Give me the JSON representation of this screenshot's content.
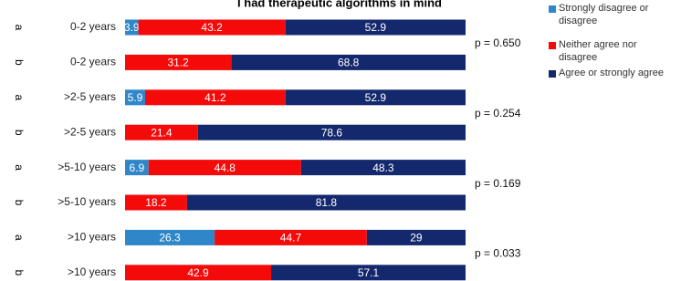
{
  "chart_data": {
    "type": "stacked-bar-horizontal",
    "title": "I had therapeutic algorithms in mind",
    "groups": [
      "a",
      "b",
      "a",
      "b",
      "a",
      "b",
      "a",
      "b"
    ],
    "categories": [
      "0-2 years",
      "0-2 years",
      ">2-5 years",
      ">2-5 years",
      ">5-10 years",
      ">5-10 years",
      ">10 years",
      ">10 years"
    ],
    "series": [
      {
        "name": "Strongly disagree or disagree",
        "color": "#2f86c9",
        "values": [
          3.9,
          0,
          5.9,
          null,
          6.9,
          null,
          26.3,
          null
        ]
      },
      {
        "name": "Neither agree nor disagree",
        "color": "#f50a0a",
        "values": [
          43.2,
          31.2,
          41.2,
          21.4,
          44.8,
          18.2,
          44.7,
          42.9
        ]
      },
      {
        "name": "Agree or strongly agree",
        "color": "#14286e",
        "values": [
          52.9,
          68.8,
          52.9,
          78.6,
          48.3,
          81.8,
          29,
          57.1
        ]
      }
    ],
    "annotations": [
      "p = 0.650",
      "p = 0.254",
      "p = 0.169",
      "p = 0.033"
    ],
    "xlim": [
      0,
      100
    ]
  }
}
